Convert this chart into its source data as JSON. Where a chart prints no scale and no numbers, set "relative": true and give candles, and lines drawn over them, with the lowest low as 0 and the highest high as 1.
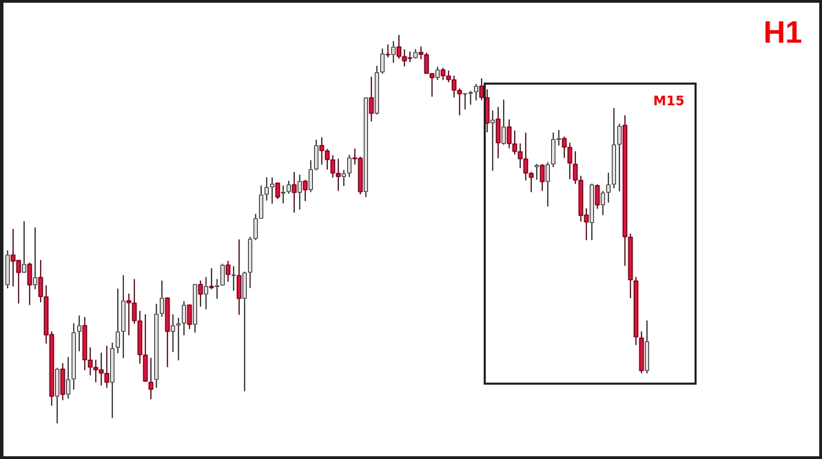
{
  "chart_data": {
    "type": "candlestick",
    "title": "H1",
    "annotations": [
      "M15"
    ],
    "relative": true,
    "categories": [
      null,
      null,
      null,
      null,
      null,
      null,
      null,
      null,
      null,
      null,
      null,
      null,
      null,
      null,
      null,
      null,
      null,
      null,
      null,
      null,
      null,
      null,
      null,
      null,
      null,
      null,
      null,
      null,
      null,
      null,
      null,
      null,
      null,
      null,
      null,
      null,
      null,
      null,
      null,
      null,
      null,
      null,
      null,
      null,
      null,
      null,
      null,
      null,
      null,
      null,
      null,
      null,
      null,
      null,
      null,
      null,
      null,
      null,
      null,
      null,
      null,
      null,
      null,
      null,
      null,
      null,
      null,
      null,
      null,
      null,
      null,
      null,
      null,
      null,
      null,
      null,
      null,
      null,
      null,
      null,
      null,
      null,
      null,
      null,
      null,
      null,
      null,
      null,
      null,
      null,
      null,
      null,
      null,
      null,
      null,
      null,
      null,
      null,
      null,
      null,
      null,
      null,
      null,
      null,
      null,
      null,
      null,
      null,
      null,
      null,
      null,
      null,
      null,
      null,
      null,
      null,
      null
    ],
    "ohlc": [
      [
        0.356,
        0.445,
        0.348,
        0.434
      ],
      [
        0.434,
        0.5,
        0.353,
        0.417
      ],
      [
        0.42,
        0.42,
        0.309,
        0.388
      ],
      [
        0.388,
        0.52,
        0.388,
        0.41
      ],
      [
        0.41,
        0.413,
        0.305,
        0.356
      ],
      [
        0.356,
        0.504,
        0.346,
        0.376
      ],
      [
        0.376,
        0.42,
        0.312,
        0.326
      ],
      [
        0.326,
        0.355,
        0.206,
        0.227
      ],
      [
        0.229,
        0.236,
        0.046,
        0.069
      ],
      [
        0.069,
        0.142,
        0,
        0.14
      ],
      [
        0.14,
        0.154,
        0.06,
        0.074
      ],
      [
        0.074,
        0.17,
        0.064,
        0.113
      ],
      [
        0.113,
        0.257,
        0.087,
        0.234
      ],
      [
        0.236,
        0.277,
        0.186,
        0.252
      ],
      [
        0.252,
        0.273,
        0.137,
        0.163
      ],
      [
        0.163,
        0.195,
        0.124,
        0.144
      ],
      [
        0.144,
        0.163,
        0.106,
        0.137
      ],
      [
        0.138,
        0.181,
        0.098,
        0.129
      ],
      [
        0.129,
        0.199,
        0.092,
        0.105
      ],
      [
        0.105,
        0.207,
        0.014,
        0.193
      ],
      [
        0.195,
        0.346,
        0.181,
        0.236
      ],
      [
        0.236,
        0.381,
        0.168,
        0.316
      ],
      [
        0.316,
        0.333,
        0.227,
        0.31
      ],
      [
        0.31,
        0.371,
        0.257,
        0.264
      ],
      [
        0.264,
        0.289,
        0.154,
        0.176
      ],
      [
        0.176,
        0.28,
        0.108,
        0.108
      ],
      [
        0.106,
        0.168,
        0.062,
        0.087
      ],
      [
        0.112,
        0.307,
        0.092,
        0.282
      ],
      [
        0.282,
        0.367,
        0.275,
        0.323
      ],
      [
        0.323,
        0.324,
        0.145,
        0.236
      ],
      [
        0.236,
        0.28,
        0.184,
        0.252
      ],
      [
        0.252,
        0.271,
        0.163,
        0.257
      ],
      [
        0.257,
        0.314,
        0.227,
        0.305
      ],
      [
        0.305,
        0.305,
        0.243,
        0.254
      ],
      [
        0.254,
        0.358,
        0.234,
        0.358
      ],
      [
        0.358,
        0.367,
        0.301,
        0.332
      ],
      [
        0.332,
        0.376,
        0.294,
        0.353
      ],
      [
        0.353,
        0.399,
        0.346,
        0.349
      ],
      [
        0.351,
        0.371,
        0.321,
        0.355
      ],
      [
        0.355,
        0.41,
        0.355,
        0.408
      ],
      [
        0.408,
        0.418,
        0.365,
        0.383
      ],
      [
        0.381,
        0.404,
        0.342,
        0.381
      ],
      [
        0.381,
        0.473,
        0.28,
        0.321
      ],
      [
        0.321,
        0.39,
        0.083,
        0.388
      ],
      [
        0.388,
        0.48,
        0.349,
        0.475
      ],
      [
        0.475,
        0.539,
        0.472,
        0.528
      ],
      [
        0.527,
        0.612,
        0.527,
        0.589
      ],
      [
        0.589,
        0.633,
        0.574,
        0.608
      ],
      [
        0.608,
        0.633,
        0.566,
        0.617
      ],
      [
        0.619,
        0.619,
        0.578,
        0.582
      ],
      [
        0.592,
        0.612,
        0.567,
        0.596
      ],
      [
        0.596,
        0.624,
        0.592,
        0.615
      ],
      [
        0.615,
        0.647,
        0.543,
        0.594
      ],
      [
        0.594,
        0.64,
        0.551,
        0.624
      ],
      [
        0.624,
        0.626,
        0.573,
        0.601
      ],
      [
        0.601,
        0.677,
        0.596,
        0.654
      ],
      [
        0.654,
        0.73,
        0.652,
        0.716
      ],
      [
        0.716,
        0.736,
        0.667,
        0.702
      ],
      [
        0.702,
        0.706,
        0.654,
        0.679
      ],
      [
        0.679,
        0.69,
        0.633,
        0.644
      ],
      [
        0.644,
        0.681,
        0.599,
        0.635
      ],
      [
        0.635,
        0.652,
        0.612,
        0.644
      ],
      [
        0.644,
        0.691,
        0.635,
        0.684
      ],
      [
        0.684,
        0.707,
        0.667,
        0.681
      ],
      [
        0.683,
        0.686,
        0.59,
        0.596
      ],
      [
        0.596,
        0.839,
        0.583,
        0.839
      ],
      [
        0.839,
        0.892,
        0.778,
        0.798
      ],
      [
        0.798,
        0.92,
        0.796,
        0.904
      ],
      [
        0.904,
        0.965,
        0.901,
        0.952
      ],
      [
        0.95,
        0.975,
        0.943,
        0.949
      ],
      [
        0.949,
        0.984,
        0.929,
        0.97
      ],
      [
        0.97,
        1,
        0.94,
        0.945
      ],
      [
        0.945,
        0.963,
        0.92,
        0.933
      ],
      [
        0.941,
        0.957,
        0.931,
        0.94
      ],
      [
        0.941,
        0.963,
        0.94,
        0.956
      ],
      [
        0.956,
        0.97,
        0.938,
        0.95
      ],
      [
        0.95,
        0.954,
        0.901,
        0.901
      ],
      [
        0.901,
        0.902,
        0.842,
        0.89
      ],
      [
        0.89,
        0.918,
        0.885,
        0.911
      ],
      [
        0.911,
        0.915,
        0.885,
        0.895
      ],
      [
        0.895,
        0.908,
        0.879,
        0.885
      ],
      [
        0.885,
        0.895,
        0.84,
        0.858
      ],
      [
        0.858,
        0.862,
        0.794,
        0.848
      ],
      [
        0.848,
        0.849,
        0.809,
        0.848
      ],
      [
        0.849,
        0.856,
        0.821,
        0.853
      ],
      [
        0.853,
        0.874,
        0.832,
        0.869
      ],
      [
        0.869,
        0.888,
        0.833,
        0.839
      ],
      [
        0.839,
        0.86,
        0.75,
        0.773
      ],
      [
        0.773,
        0.805,
        0.651,
        0.782
      ],
      [
        0.784,
        0.814,
        0.683,
        0.722
      ],
      [
        0.72,
        0.833,
        0.718,
        0.764
      ],
      [
        0.764,
        0.782,
        0.709,
        0.72
      ],
      [
        0.72,
        0.754,
        0.693,
        0.7
      ],
      [
        0.7,
        0.72,
        0.658,
        0.681
      ],
      [
        0.681,
        0.748,
        0.626,
        0.644
      ],
      [
        0.644,
        0.647,
        0.596,
        0.633
      ],
      [
        0.66,
        0.668,
        0.628,
        0.665
      ],
      [
        0.665,
        0.667,
        0.599,
        0.622
      ],
      [
        0.622,
        0.672,
        0.559,
        0.667
      ],
      [
        0.667,
        0.748,
        0.66,
        0.732
      ],
      [
        0.73,
        0.755,
        0.716,
        0.734
      ],
      [
        0.734,
        0.738,
        0.684,
        0.711
      ],
      [
        0.711,
        0.722,
        0.629,
        0.67
      ],
      [
        0.668,
        0.7,
        0.617,
        0.626
      ],
      [
        0.626,
        0.637,
        0.52,
        0.535
      ],
      [
        0.537,
        0.553,
        0.472,
        0.518
      ],
      [
        0.516,
        0.617,
        0.472,
        0.615
      ],
      [
        0.613,
        0.615,
        0.553,
        0.562
      ],
      [
        0.562,
        0.598,
        0.537,
        0.594
      ],
      [
        0.594,
        0.645,
        0.569,
        0.615
      ],
      [
        0.615,
        0.812,
        0.606,
        0.718
      ],
      [
        0.718,
        0.771,
        0.598,
        0.766
      ],
      [
        0.768,
        0.793,
        0.406,
        0.48
      ],
      [
        0.48,
        0.488,
        0.323,
        0.369
      ],
      [
        0.367,
        0.376,
        0.202,
        0.222
      ],
      [
        0.22,
        0.236,
        0.129,
        0.135
      ],
      [
        0.135,
        0.264,
        0.129,
        0.211
      ]
    ],
    "colors": [
      "#e0e0e0",
      "#dc143c",
      "#dc143c",
      "#e0e0e0",
      "#dc143c",
      "#e0e0e0",
      "#dc143c",
      "#dc143c",
      "#dc143c",
      "#e0e0e0",
      "#dc143c",
      "#e0e0e0",
      "#e0e0e0",
      "#e0e0e0",
      "#dc143c",
      "#dc143c",
      "#dc143c",
      "#dc143c",
      "#dc143c",
      "#e0e0e0",
      "#e0e0e0",
      "#e0e0e0",
      "#dc143c",
      "#dc143c",
      "#dc143c",
      "#dc143c",
      "#dc143c",
      "#e0e0e0",
      "#e0e0e0",
      "#dc143c",
      "#e0e0e0",
      "#e0e0e0",
      "#e0e0e0",
      "#dc143c",
      "#e0e0e0",
      "#dc143c",
      "#e0e0e0",
      "#dc143c",
      "#e0e0e0",
      "#e0e0e0",
      "#dc143c",
      "#e0e0e0",
      "#dc143c",
      "#e0e0e0",
      "#e0e0e0",
      "#e0e0e0",
      "#e0e0e0",
      "#e0e0e0",
      "#e0e0e0",
      "#dc143c",
      "#e0e0e0",
      "#e0e0e0",
      "#dc143c",
      "#e0e0e0",
      "#dc143c",
      "#e0e0e0",
      "#e0e0e0",
      "#dc143c",
      "#dc143c",
      "#dc143c",
      "#dc143c",
      "#e0e0e0",
      "#e0e0e0",
      "#dc143c",
      "#dc143c",
      "#e0e0e0",
      "#dc143c",
      "#e0e0e0",
      "#e0e0e0",
      "#dc143c",
      "#e0e0e0",
      "#dc143c",
      "#dc143c",
      "#dc143c",
      "#e0e0e0",
      "#dc143c",
      "#dc143c",
      "#dc143c",
      "#e0e0e0",
      "#dc143c",
      "#dc143c",
      "#dc143c",
      "#dc143c",
      "#e0e0e0",
      "#e0e0e0",
      "#e0e0e0",
      "#dc143c",
      "#dc143c",
      "#e0e0e0",
      "#dc143c",
      "#e0e0e0",
      "#dc143c",
      "#dc143c",
      "#dc143c",
      "#dc143c",
      "#dc143c",
      "#e0e0e0",
      "#dc143c",
      "#e0e0e0",
      "#e0e0e0",
      "#e0e0e0",
      "#dc143c",
      "#dc143c",
      "#dc143c",
      "#dc143c",
      "#dc143c",
      "#e0e0e0",
      "#dc143c",
      "#e0e0e0",
      "#e0e0e0",
      "#e0e0e0",
      "#e0e0e0",
      "#dc143c",
      "#dc143c",
      "#dc143c",
      "#dc143c",
      "#e0e0e0"
    ]
  }
}
